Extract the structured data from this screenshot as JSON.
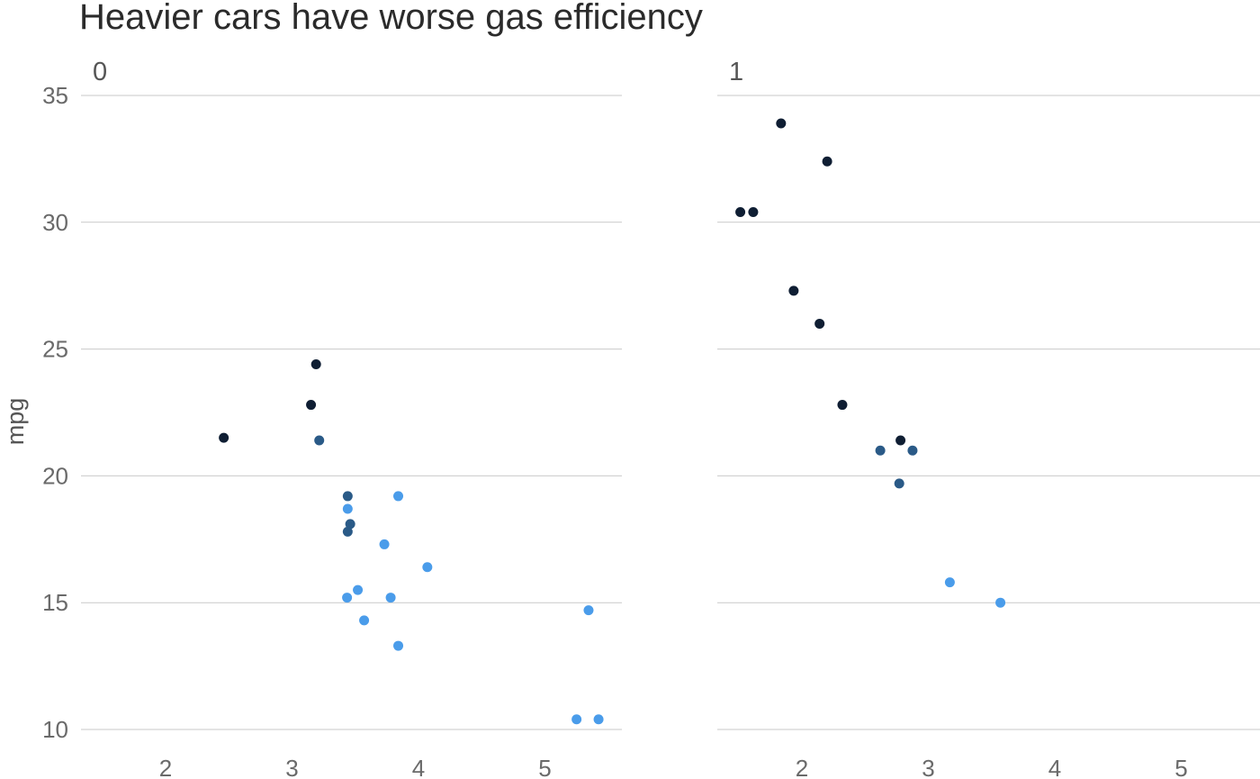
{
  "chart_data": {
    "type": "scatter",
    "title": "Heavier cars have worse gas efficiency",
    "xlabel": "",
    "ylabel": "mpg",
    "ylim": [
      10,
      35
    ],
    "xlim": [
      1.3,
      5.6
    ],
    "y_ticks": [
      "10",
      "15",
      "20",
      "25",
      "30",
      "35"
    ],
    "x_ticks": [
      "2",
      "3",
      "4",
      "5"
    ],
    "grid": "horizontal",
    "legend": "none",
    "colors": {
      "dark": "#0f1e33",
      "mid": "#2a5a87",
      "light": "#4a9cea"
    },
    "panels": [
      {
        "label": "0",
        "points": [
          {
            "x": 2.46,
            "y": 21.5,
            "c": "dark"
          },
          {
            "x": 3.15,
            "y": 22.8,
            "c": "dark"
          },
          {
            "x": 3.19,
            "y": 24.4,
            "c": "dark"
          },
          {
            "x": 3.215,
            "y": 21.4,
            "c": "mid"
          },
          {
            "x": 3.44,
            "y": 19.2,
            "c": "mid"
          },
          {
            "x": 3.46,
            "y": 18.1,
            "c": "mid"
          },
          {
            "x": 3.44,
            "y": 17.8,
            "c": "mid"
          },
          {
            "x": 3.44,
            "y": 18.7,
            "c": "light"
          },
          {
            "x": 3.84,
            "y": 19.2,
            "c": "light"
          },
          {
            "x": 3.73,
            "y": 17.3,
            "c": "light"
          },
          {
            "x": 4.07,
            "y": 16.4,
            "c": "light"
          },
          {
            "x": 3.52,
            "y": 15.5,
            "c": "light"
          },
          {
            "x": 3.435,
            "y": 15.2,
            "c": "light"
          },
          {
            "x": 3.78,
            "y": 15.2,
            "c": "light"
          },
          {
            "x": 3.57,
            "y": 14.3,
            "c": "light"
          },
          {
            "x": 3.84,
            "y": 13.3,
            "c": "light"
          },
          {
            "x": 5.345,
            "y": 14.7,
            "c": "light"
          },
          {
            "x": 5.25,
            "y": 10.4,
            "c": "light"
          },
          {
            "x": 5.424,
            "y": 10.4,
            "c": "light"
          }
        ]
      },
      {
        "label": "1",
        "points": [
          {
            "x": 1.835,
            "y": 33.9,
            "c": "dark"
          },
          {
            "x": 2.2,
            "y": 32.4,
            "c": "dark"
          },
          {
            "x": 1.513,
            "y": 30.4,
            "c": "dark"
          },
          {
            "x": 1.615,
            "y": 30.4,
            "c": "dark"
          },
          {
            "x": 1.935,
            "y": 27.3,
            "c": "dark"
          },
          {
            "x": 2.14,
            "y": 26.0,
            "c": "dark"
          },
          {
            "x": 2.32,
            "y": 22.8,
            "c": "dark"
          },
          {
            "x": 2.78,
            "y": 21.4,
            "c": "dark"
          },
          {
            "x": 2.62,
            "y": 21.0,
            "c": "mid"
          },
          {
            "x": 2.875,
            "y": 21.0,
            "c": "mid"
          },
          {
            "x": 2.77,
            "y": 19.7,
            "c": "mid"
          },
          {
            "x": 3.17,
            "y": 15.8,
            "c": "light"
          },
          {
            "x": 3.57,
            "y": 15.0,
            "c": "light"
          }
        ]
      }
    ]
  }
}
